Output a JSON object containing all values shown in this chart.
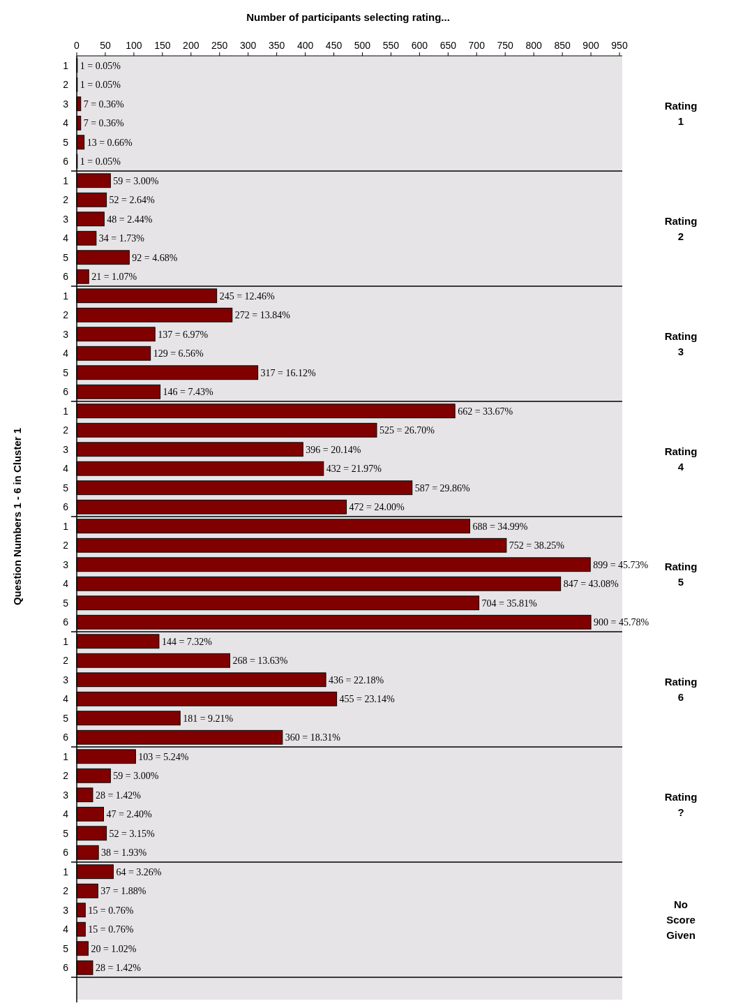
{
  "chart_data": {
    "type": "bar",
    "orientation": "horizontal",
    "xlabel": "Number of participants selecting rating...",
    "ylabel": "Question Numbers 1 - 6 in Cluster 1",
    "categories": [
      "1",
      "2",
      "3",
      "4",
      "5",
      "6",
      "1",
      "2",
      "3",
      "4",
      "5",
      "6",
      "1",
      "2",
      "3",
      "4",
      "5",
      "6",
      "1",
      "2",
      "3",
      "4",
      "5",
      "6",
      "1",
      "2",
      "3",
      "4",
      "5",
      "6",
      "1",
      "2",
      "3",
      "4",
      "5",
      "6",
      "1",
      "2",
      "3",
      "4",
      "5",
      "6",
      "1",
      "2",
      "3",
      "4",
      "5",
      "6"
    ],
    "values": [
      1,
      1,
      7,
      7,
      13,
      1,
      59,
      52,
      48,
      34,
      92,
      21,
      245,
      272,
      137,
      129,
      317,
      146,
      662,
      525,
      396,
      432,
      587,
      472,
      688,
      752,
      899,
      847,
      704,
      900,
      144,
      268,
      436,
      455,
      181,
      360,
      103,
      59,
      28,
      47,
      52,
      38,
      64,
      37,
      15,
      15,
      20,
      28
    ],
    "value_labels": [
      "1 = 0.05%",
      "1 = 0.05%",
      "7 = 0.36%",
      "7 = 0.36%",
      "13 = 0.66%",
      "1 = 0.05%",
      "59 = 3.00%",
      "52 = 2.64%",
      "48 = 2.44%",
      "34 = 1.73%",
      "92 = 4.68%",
      "21 = 1.07%",
      "245 = 12.46%",
      "272 = 13.84%",
      "137 = 6.97%",
      "129 = 6.56%",
      "317 = 16.12%",
      "146 = 7.43%",
      "662 = 33.67%",
      "525 = 26.70%",
      "396 = 20.14%",
      "432 = 21.97%",
      "587 = 29.86%",
      "472 = 24.00%",
      "688 = 34.99%",
      "752 = 38.25%",
      "899 = 45.73%",
      "847 = 43.08%",
      "704 = 35.81%",
      "900 = 45.78%",
      "144 = 7.32%",
      "268 = 13.63%",
      "436 = 22.18%",
      "455 = 23.14%",
      "181 = 9.21%",
      "360 = 18.31%",
      "103 = 5.24%",
      "59 = 3.00%",
      "28 = 1.42%",
      "47 = 2.40%",
      "52 = 3.15%",
      "38 = 1.93%",
      "64 = 3.26%",
      "37 = 1.88%",
      "15 = 0.76%",
      "15 = 0.76%",
      "20 = 1.02%",
      "28 = 1.42%"
    ],
    "color": "#800000",
    "xlim": [
      0,
      950
    ],
    "xticks": [
      0,
      50,
      100,
      150,
      200,
      250,
      300,
      350,
      400,
      450,
      500,
      550,
      600,
      650,
      700,
      750,
      800,
      850,
      900,
      950
    ],
    "grid": false,
    "annotations": [
      "Rating 1",
      "Rating 2",
      "Rating 3",
      "Rating 4",
      "Rating 5",
      "Rating 6",
      "Rating ?",
      "No Score Given"
    ]
  }
}
